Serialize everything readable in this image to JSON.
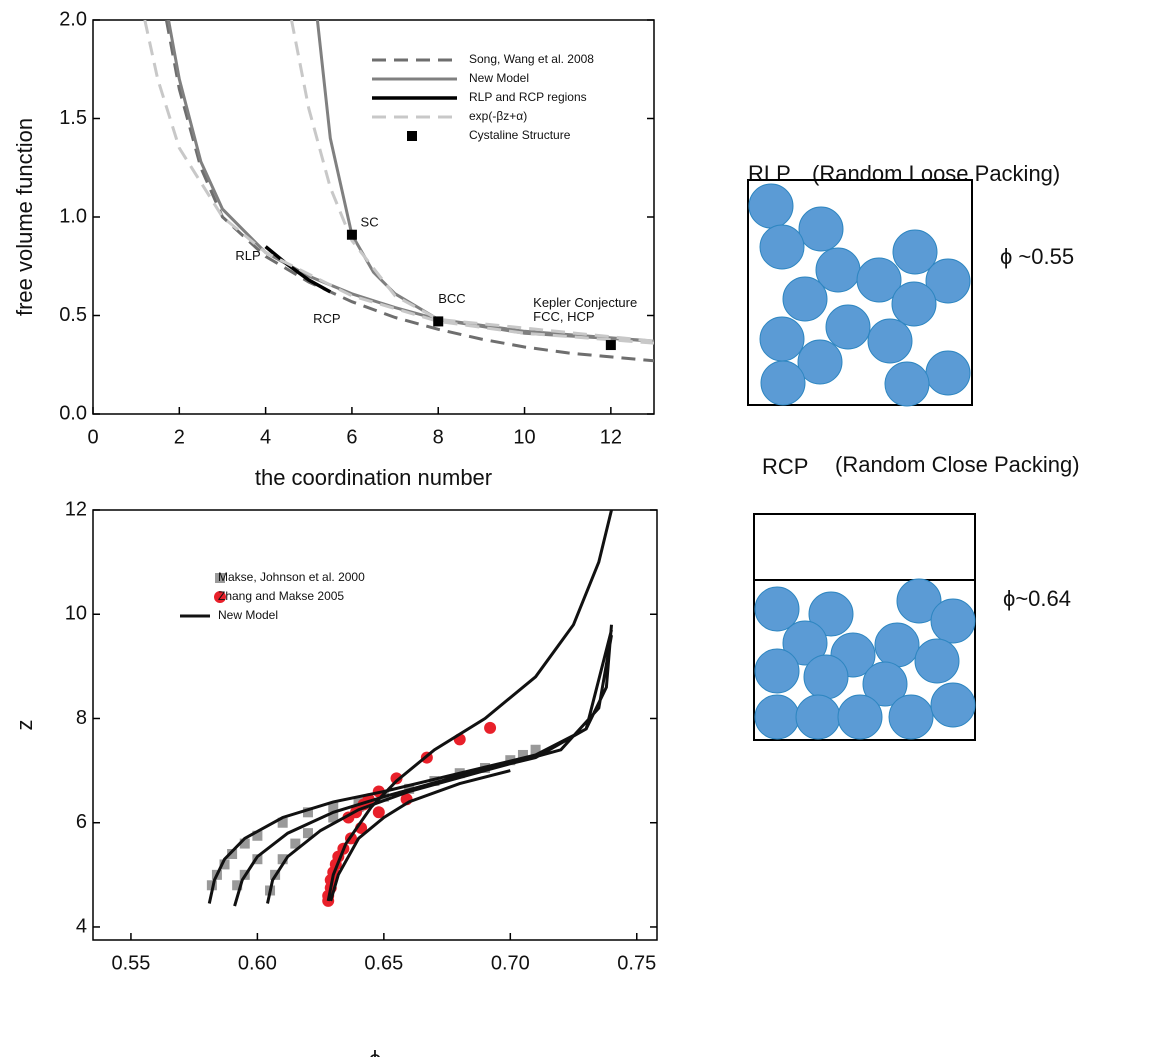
{
  "chart_data": [
    {
      "type": "line",
      "xlabel": "the coordination number",
      "ylabel": "free volume function",
      "xlim": [
        0,
        13
      ],
      "ylim": [
        0,
        2
      ],
      "xticks": [
        0,
        2,
        4,
        6,
        8,
        10,
        12
      ],
      "yticks": [
        {
          "value": 0,
          "label": "0.0"
        },
        0.5,
        {
          "value": 1,
          "label": "1.0"
        },
        1.5,
        {
          "value": 2,
          "label": "2.0"
        }
      ],
      "legend": "upper right",
      "series": [
        {
          "name": "Song, Wang et al. 2008",
          "color": "#6e6e6e",
          "dash": true,
          "width": 3,
          "x": [
            1.7,
            2,
            2.5,
            3,
            4,
            5,
            6,
            7,
            8,
            9,
            10,
            11,
            12,
            13
          ],
          "values": [
            2.0,
            1.65,
            1.25,
            1.0,
            0.8,
            0.67,
            0.57,
            0.49,
            0.43,
            0.38,
            0.34,
            0.31,
            0.29,
            0.27
          ]
        },
        {
          "name": "New Model",
          "color": "#808080",
          "dash": false,
          "width": 3,
          "x": [
            1.75,
            2,
            2.5,
            3,
            4,
            5,
            6,
            7,
            8,
            10,
            13,
            null,
            5.2,
            5.5,
            6,
            6.5,
            7,
            8,
            10,
            13
          ],
          "values": [
            2.0,
            1.7,
            1.28,
            1.04,
            0.82,
            0.7,
            0.61,
            0.54,
            0.48,
            0.42,
            0.37,
            null,
            2.0,
            1.4,
            0.91,
            0.72,
            0.61,
            0.48,
            0.41,
            0.37
          ]
        },
        {
          "name": "RLP and RCP regions",
          "color": "#000000",
          "dash": false,
          "width": 3.5,
          "x": [
            4,
            4.5,
            5,
            5.5
          ],
          "values": [
            0.85,
            0.76,
            0.68,
            0.62
          ]
        },
        {
          "name": "exp(-βz+α)",
          "color": "#c8c8c8",
          "dash": true,
          "width": 3,
          "x": [
            1.2,
            1.5,
            2,
            3,
            4,
            6,
            8,
            10,
            13,
            null,
            4.6,
            5,
            5.5,
            6,
            7,
            8,
            13
          ],
          "values": [
            2.0,
            1.7,
            1.35,
            1.0,
            0.82,
            0.6,
            0.47,
            0.41,
            0.36,
            null,
            2.0,
            1.55,
            1.15,
            0.88,
            0.6,
            0.48,
            0.37
          ]
        },
        {
          "name": "Cystaline Structure",
          "color": "#000000",
          "mode": "markers",
          "marker": "square",
          "x": [
            6,
            8,
            12
          ],
          "values": [
            0.91,
            0.47,
            0.35
          ]
        }
      ],
      "annotations": [
        "SC",
        "BCC",
        "RLP",
        "RCP",
        "Kepler Conjecture",
        "FCC, HCP"
      ]
    },
    {
      "type": "line",
      "xlabel": "ϕ",
      "ylabel": "z",
      "xlim": [
        0.535,
        0.758
      ],
      "ylim": [
        3.75,
        12
      ],
      "xticks": [
        0.55,
        {
          "value": 0.6,
          "label": "0.60"
        },
        0.65,
        {
          "value": 0.7,
          "label": "0.70"
        },
        0.75
      ],
      "yticks": [
        4,
        6,
        8,
        10,
        12
      ],
      "legend": "upper left",
      "series": [
        {
          "name": "Makse, Johnson et al. 2000",
          "color": "#999999",
          "mode": "markers",
          "marker": "square",
          "x": [
            0.582,
            0.584,
            0.587,
            0.59,
            0.595,
            0.6,
            0.61,
            0.62,
            0.63,
            0.64,
            0.592,
            0.595,
            0.6,
            0.605,
            0.607,
            0.61,
            0.615,
            0.62,
            0.63,
            0.64,
            0.65,
            0.66,
            0.67,
            0.68,
            0.69,
            0.7,
            0.705,
            0.71
          ],
          "values": [
            4.8,
            5.0,
            5.2,
            5.4,
            5.6,
            5.75,
            6.0,
            6.2,
            6.3,
            6.4,
            4.8,
            5.0,
            5.3,
            4.7,
            5.0,
            5.3,
            5.6,
            5.8,
            6.1,
            6.3,
            6.5,
            6.65,
            6.8,
            6.95,
            7.05,
            7.2,
            7.3,
            7.4
          ]
        },
        {
          "name": "Zhang and Makse 2005",
          "color": "#e8202a",
          "mode": "markers",
          "marker": "circle",
          "x": [
            0.628,
            0.628,
            0.629,
            0.629,
            0.63,
            0.631,
            0.632,
            0.634,
            0.637,
            0.641,
            0.648,
            0.659,
            0.636,
            0.639,
            0.642,
            0.644,
            0.648,
            0.655,
            0.667,
            0.68,
            0.692
          ],
          "values": [
            4.5,
            4.6,
            4.75,
            4.9,
            5.05,
            5.2,
            5.35,
            5.5,
            5.7,
            5.9,
            6.2,
            6.45,
            6.1,
            6.2,
            6.35,
            6.45,
            6.6,
            6.85,
            7.25,
            7.6,
            7.82
          ]
        },
        {
          "name": "New Model",
          "color": "#111111",
          "dash": false,
          "width": 3,
          "x": [
            0.581,
            0.583,
            0.587,
            0.595,
            0.61,
            0.63,
            0.65,
            0.68,
            0.71,
            0.73,
            0.738,
            0.74,
            null,
            0.591,
            0.594,
            0.6,
            0.612,
            0.63,
            0.65,
            0.68,
            0.71,
            0.73,
            0.74,
            null,
            0.604,
            0.606,
            0.612,
            0.625,
            0.64,
            0.66,
            0.69,
            0.72,
            0.735,
            0.74,
            null,
            0.628,
            0.63,
            0.635,
            0.645,
            0.655,
            0.67,
            0.69,
            0.71,
            0.725,
            0.735,
            0.74,
            null,
            0.629,
            0.632,
            0.64,
            0.65,
            0.66,
            0.68,
            0.7
          ],
          "values": [
            4.45,
            4.9,
            5.3,
            5.7,
            6.1,
            6.4,
            6.6,
            6.95,
            7.3,
            7.8,
            8.6,
            9.8,
            null,
            4.4,
            4.9,
            5.35,
            5.8,
            6.2,
            6.5,
            6.9,
            7.25,
            7.8,
            9.7,
            null,
            4.45,
            4.9,
            5.35,
            5.85,
            6.25,
            6.6,
            7.0,
            7.4,
            8.2,
            9.6,
            null,
            4.5,
            5.0,
            5.6,
            6.3,
            6.8,
            7.4,
            8.0,
            8.8,
            9.8,
            11.0,
            12.0,
            null,
            4.5,
            5.0,
            5.7,
            6.1,
            6.4,
            6.75,
            7.0
          ]
        }
      ]
    }
  ],
  "panels": [
    {
      "label": "RLP",
      "description": "(Random Loose Packing)",
      "phi": "ϕ ~0.55"
    },
    {
      "label": "RCP",
      "description": "(Random Close Packing)",
      "phi": "ϕ~0.64"
    }
  ]
}
